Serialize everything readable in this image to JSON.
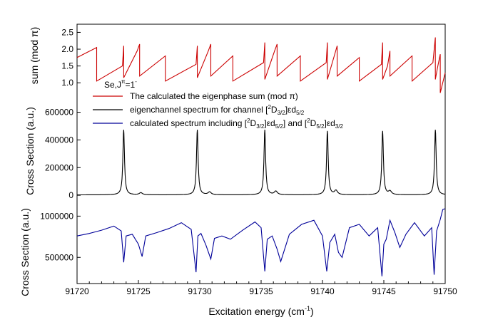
{
  "chart_data": [
    {
      "type": "line",
      "panel": "top",
      "ylabel": "sum (mod π)",
      "ylim": [
        0.75,
        2.7
      ],
      "yticks": [
        "1.0",
        "1.5",
        "2.0",
        "2.5"
      ],
      "series": [
        {
          "name": "The calculated the eigenphase sum (mod π)",
          "color": "#cc0000",
          "x": [
            91720,
            91721.6,
            91721.6,
            91723.7,
            91723.8,
            91723.8,
            91724.9,
            91725.1,
            91725.1,
            91727.2,
            91727.2,
            91729.7,
            91729.8,
            91729.8,
            91730.7,
            91730.9,
            91730.9,
            91732.7,
            91732.7,
            91735.2,
            91735.3,
            91735.3,
            91736.1,
            91736.3,
            91736.3,
            91738.2,
            91738.2,
            91740.3,
            91740.4,
            91740.4,
            91741.0,
            91741.2,
            91741.2,
            91743.0,
            91743.0,
            91744.8,
            91744.9,
            91744.9,
            91745.3,
            91745.5,
            91745.5,
            91747.3,
            91747.3,
            91749.0,
            91749.2,
            91749.2,
            91749.4,
            91749.6,
            91749.6,
            91750
          ],
          "y": [
            1.75,
            2.05,
            1.05,
            1.5,
            2.1,
            1.15,
            1.95,
            2.15,
            1.2,
            1.8,
            1.05,
            1.55,
            2.1,
            1.15,
            1.95,
            2.15,
            1.2,
            1.8,
            1.05,
            1.6,
            2.2,
            1.1,
            1.95,
            2.15,
            1.2,
            1.8,
            1.05,
            1.6,
            2.2,
            1.1,
            1.85,
            2.1,
            1.2,
            1.75,
            1.05,
            1.55,
            2.2,
            1.1,
            1.5,
            1.95,
            1.2,
            1.8,
            1.05,
            1.6,
            2.35,
            1.1,
            1.5,
            1.85,
            0.7,
            1.3
          ]
        }
      ]
    },
    {
      "type": "line",
      "panel": "middle",
      "ylabel": "Cross Section (a.u.)",
      "ylim": [
        -20000,
        680000
      ],
      "yticks": [
        "0",
        "200000",
        "400000",
        "600000"
      ],
      "series": [
        {
          "name": "eigenchannel spectrum for channel [2D3/2]εd5/2",
          "color": "#000000",
          "peaks": [
            {
              "x": 91723.8,
              "height": 470000,
              "width": 0.08
            },
            {
              "x": 91725.2,
              "height": 15000,
              "width": 0.15
            },
            {
              "x": 91729.8,
              "height": 470000,
              "width": 0.08
            },
            {
              "x": 91730.8,
              "height": 20000,
              "width": 0.15
            },
            {
              "x": 91735.3,
              "height": 470000,
              "width": 0.08
            },
            {
              "x": 91736.2,
              "height": 25000,
              "width": 0.15
            },
            {
              "x": 91740.4,
              "height": 460000,
              "width": 0.08
            },
            {
              "x": 91741.1,
              "height": 30000,
              "width": 0.15
            },
            {
              "x": 91744.9,
              "height": 460000,
              "width": 0.08
            },
            {
              "x": 91745.5,
              "height": 25000,
              "width": 0.15
            },
            {
              "x": 91749.2,
              "height": 470000,
              "width": 0.08
            }
          ],
          "baseline": 3000
        }
      ]
    },
    {
      "type": "line",
      "panel": "bottom",
      "ylabel": "Cross Section (a.u.)",
      "xlabel": "Excitation energy (cm⁻¹)",
      "ylim": [
        200000,
        1150000
      ],
      "xlim": [
        91720,
        91750
      ],
      "yticks": [
        "500000",
        "1000000"
      ],
      "xticks": [
        "91720",
        "91725",
        "91730",
        "91735",
        "91740",
        "91745",
        "91750"
      ],
      "series": [
        {
          "name": "calculated spectrum including [2D3/2]εd5/2] and [2D5/2]εd3/2",
          "color": "#000099",
          "x": [
            91720,
            91721,
            91722,
            91723,
            91723.6,
            91723.8,
            91724.0,
            91724.5,
            91725.0,
            91725.3,
            91725.6,
            91726.5,
            91727.5,
            91728.5,
            91729.3,
            91729.7,
            91729.85,
            91730.1,
            91730.5,
            91730.9,
            91731.2,
            91731.8,
            91732.5,
            91733.5,
            91734.5,
            91735.0,
            91735.3,
            91735.5,
            91735.9,
            91736.3,
            91736.6,
            91737.3,
            91738.3,
            91739.3,
            91740.0,
            91740.35,
            91740.6,
            91741.0,
            91741.3,
            91741.6,
            91742.2,
            91743.0,
            91743.8,
            91744.5,
            91744.85,
            91745.0,
            91745.2,
            91745.5,
            91745.9,
            91746.3,
            91746.8,
            91747.5,
            91748.3,
            91748.9,
            91749.1,
            91749.3,
            91749.6,
            91749.8,
            91750
          ],
          "y": [
            760000,
            790000,
            830000,
            880000,
            820000,
            440000,
            760000,
            780000,
            660000,
            510000,
            760000,
            800000,
            850000,
            920000,
            840000,
            320000,
            760000,
            790000,
            650000,
            480000,
            730000,
            760000,
            720000,
            830000,
            930000,
            860000,
            330000,
            720000,
            760000,
            600000,
            450000,
            780000,
            900000,
            950000,
            760000,
            330000,
            680000,
            780000,
            560000,
            500000,
            860000,
            900000,
            760000,
            860000,
            270000,
            660000,
            720000,
            950000,
            800000,
            620000,
            780000,
            920000,
            760000,
            860000,
            290000,
            820000,
            960000,
            1080000,
            1090000
          ]
        }
      ]
    }
  ],
  "legend": {
    "title": "Se,J",
    "title_super": "π",
    "title_rest": "=1",
    "title_rest_super": "-",
    "entries": [
      {
        "text": "The calculated the eigenphase sum (mod π)",
        "color": "#cc0000"
      },
      {
        "parts": [
          "eigenchannel spectrum for channel [",
          "2",
          "D",
          "3/2",
          "]εd",
          "5/2"
        ],
        "color": "#000000"
      },
      {
        "parts": [
          "calculated  spectrum including [",
          "2",
          "D",
          "3/2",
          "]εd",
          "5/2",
          "] and [",
          "2",
          "D",
          "5/2",
          "]εd",
          "3/2"
        ],
        "color": "#000099"
      }
    ]
  },
  "axes": {
    "top_ylabel": "sum (mod π)",
    "middle_ylabel": "Cross Section (a.u.)",
    "bottom_ylabel": "Cross Section (a.u.)",
    "xlabel_main": "Excitation energy (cm",
    "xlabel_sup": "-1",
    "xlabel_end": ")"
  }
}
